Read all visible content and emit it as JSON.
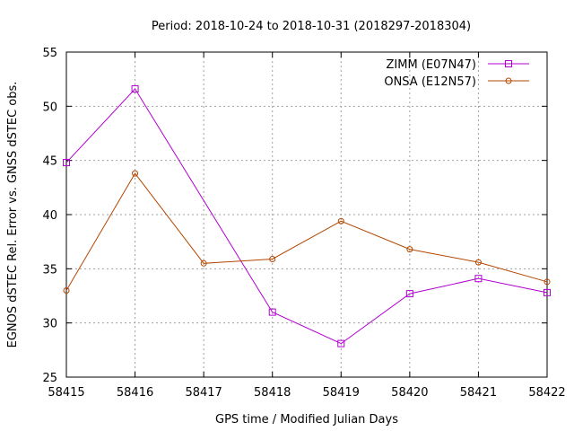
{
  "chart_data": {
    "type": "line",
    "title": "Period: 2018-10-24 to 2018-10-31 (2018297-2018304)",
    "xlabel": "GPS time / Modified Julian Days",
    "ylabel": "EGNOS dSTEC Rel. Error vs. GNSS dSTEC obs.",
    "xlim": [
      58415,
      58422
    ],
    "ylim": [
      25,
      55
    ],
    "x_ticks": [
      "58415",
      "58416",
      "58417",
      "58418",
      "58419",
      "58420",
      "58421",
      "58422"
    ],
    "y_ticks": [
      "25",
      "30",
      "35",
      "40",
      "45",
      "50",
      "55"
    ],
    "grid": true,
    "legend_position": "top-right",
    "series": [
      {
        "name": "ZIMM (E07N47)",
        "color": "#b000d0",
        "marker": "open-square",
        "x": [
          58415,
          58416,
          58418,
          58419,
          58420,
          58421,
          58422
        ],
        "values": [
          44.8,
          51.6,
          31.0,
          28.1,
          32.7,
          34.1,
          32.8
        ]
      },
      {
        "name": "ONSA (E12N57)",
        "color": "#b34700",
        "marker": "open-circle",
        "x": [
          58415,
          58416,
          58417,
          58418,
          58419,
          58420,
          58421,
          58422
        ],
        "values": [
          33.0,
          43.8,
          35.5,
          35.9,
          39.4,
          36.8,
          35.6,
          33.8
        ]
      }
    ]
  }
}
